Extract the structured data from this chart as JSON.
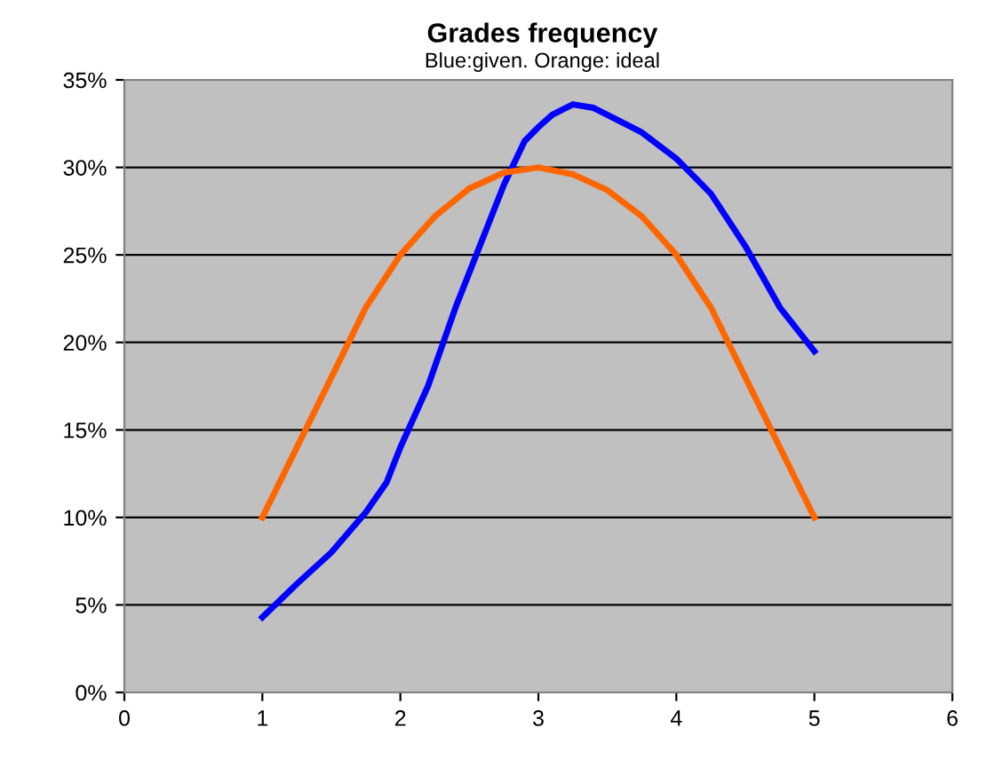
{
  "chart_data": {
    "type": "line",
    "title": "Grades frequency",
    "subtitle": "Blue:given. Orange: ideal",
    "series": [
      {
        "color": "#0000ff",
        "x": [
          1,
          1.25,
          1.5,
          1.75,
          1.9,
          2,
          2.2,
          2.4,
          2.5,
          2.75,
          2.9,
          3,
          3.1,
          3.25,
          3.4,
          3.5,
          3.75,
          4,
          4.25,
          4.5,
          4.75,
          5
        ],
        "values": [
          4.3,
          6.2,
          8,
          10.3,
          12,
          14,
          17.5,
          22,
          24,
          29,
          31.5,
          32.3,
          33,
          33.6,
          33.4,
          33,
          32,
          30.5,
          28.5,
          25.5,
          22,
          19.5
        ]
      },
      {
        "color": "#ff6600",
        "x": [
          1,
          1.25,
          1.5,
          1.75,
          2,
          2.25,
          2.5,
          2.75,
          3,
          3.25,
          3.5,
          3.75,
          4,
          4.25,
          4.5,
          4.75,
          5
        ],
        "values": [
          10,
          14,
          18,
          22,
          25,
          27.2,
          28.8,
          29.7,
          30,
          29.6,
          28.7,
          27.2,
          25,
          22,
          18,
          14,
          10
        ]
      }
    ],
    "xlim": [
      0,
      6
    ],
    "xticks": [
      0,
      1,
      2,
      3,
      4,
      5,
      6
    ],
    "ylim": [
      0,
      35
    ],
    "yticks": [
      {
        "value": 0,
        "label": "0%"
      },
      {
        "value": 5,
        "label": "5%"
      },
      {
        "value": 10,
        "label": "10%"
      },
      {
        "value": 15,
        "label": "15%"
      },
      {
        "value": 20,
        "label": "20%"
      },
      {
        "value": 25,
        "label": "25%"
      },
      {
        "value": 30,
        "label": "30%"
      },
      {
        "value": 35,
        "label": "35%"
      }
    ],
    "grid": "y",
    "marker": "none",
    "line_style": "solid"
  }
}
